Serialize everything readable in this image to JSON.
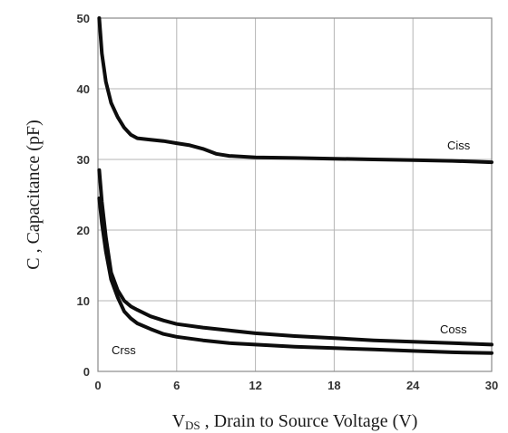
{
  "chart_data": {
    "type": "line",
    "xlabel_main": "V",
    "xlabel_sub": "DS",
    "xlabel_rest": " , Drain to Source Voltage (V)",
    "ylabel": "C , Capacitance (pF)",
    "xlim": [
      0,
      30
    ],
    "ylim": [
      0,
      50
    ],
    "x_ticks": [
      "0",
      "6",
      "12",
      "18",
      "24",
      "30"
    ],
    "y_ticks": [
      "0",
      "10",
      "20",
      "30",
      "40",
      "50"
    ],
    "grid": true,
    "series": [
      {
        "name": "Ciss",
        "x": [
          0.1,
          0.3,
          0.6,
          1,
          1.5,
          2,
          2.5,
          3,
          4,
          5,
          6,
          7,
          8,
          9,
          10,
          12,
          15,
          18,
          21,
          24,
          27,
          30
        ],
        "y": [
          50,
          45,
          41,
          38,
          36,
          34.5,
          33.5,
          33,
          32.8,
          32.6,
          32.3,
          32,
          31.5,
          30.8,
          30.5,
          30.3,
          30.2,
          30.1,
          30,
          29.9,
          29.8,
          29.6
        ]
      },
      {
        "name": "Coss",
        "x": [
          0.1,
          0.3,
          0.6,
          1,
          1.5,
          2,
          2.5,
          3,
          4,
          5,
          6,
          8,
          10,
          12,
          15,
          18,
          21,
          24,
          27,
          30
        ],
        "y": [
          28.5,
          24,
          19,
          14,
          11.5,
          10,
          9.2,
          8.7,
          7.8,
          7.2,
          6.7,
          6.2,
          5.8,
          5.4,
          5.0,
          4.7,
          4.4,
          4.2,
          4.0,
          3.8
        ]
      },
      {
        "name": "Crss",
        "x": [
          0.1,
          0.3,
          0.6,
          1,
          1.5,
          2,
          2.5,
          3,
          4,
          5,
          6,
          8,
          10,
          12,
          15,
          18,
          21,
          24,
          27,
          30
        ],
        "y": [
          24.5,
          21,
          17,
          13,
          10.5,
          8.5,
          7.5,
          6.8,
          6.0,
          5.3,
          4.9,
          4.4,
          4.0,
          3.8,
          3.5,
          3.3,
          3.1,
          2.9,
          2.7,
          2.6
        ]
      }
    ],
    "annotations": [
      "Ciss",
      "Coss",
      "Crss"
    ]
  }
}
